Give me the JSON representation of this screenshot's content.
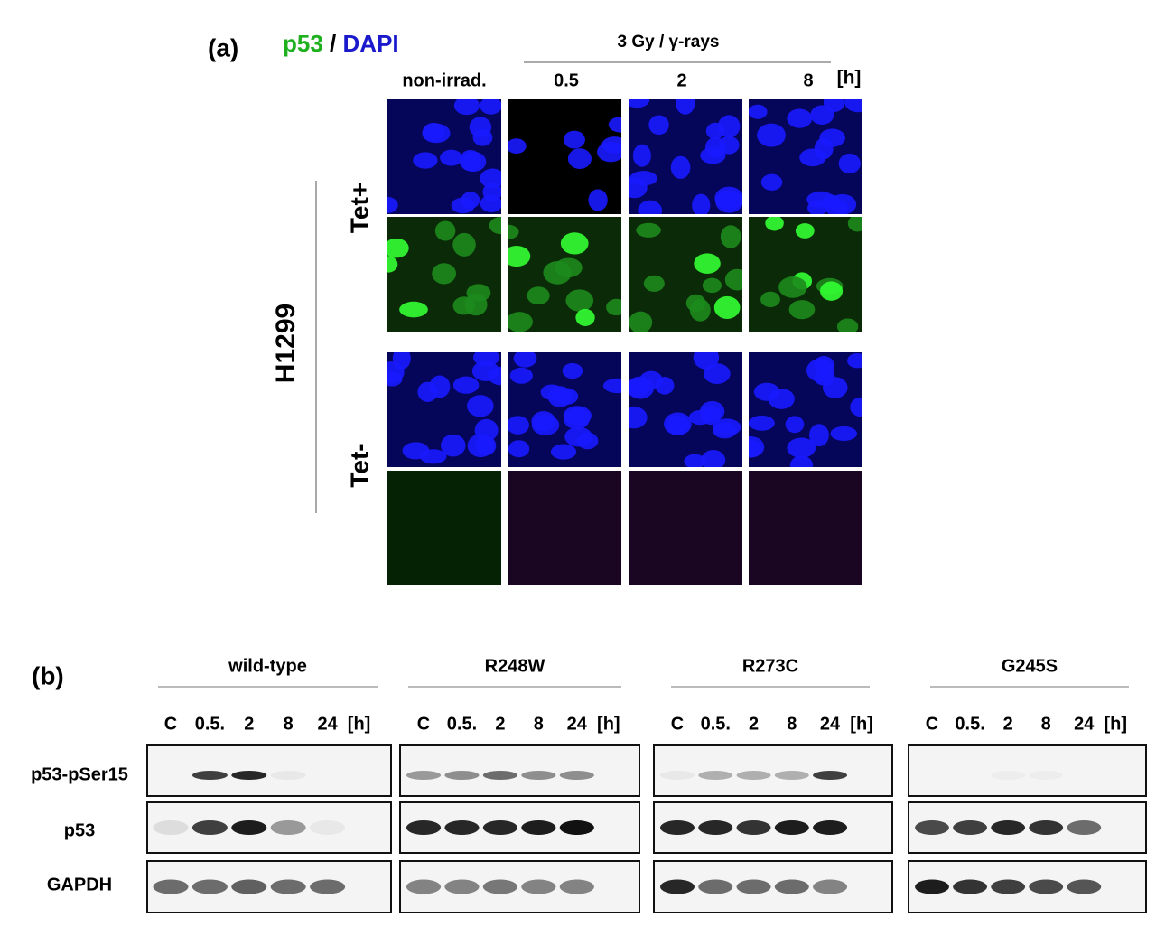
{
  "panel_a": {
    "label": "(a)",
    "stain_p53": "p53",
    "stain_separator": "/",
    "stain_dapi": "DAPI",
    "treatment": "3 Gy / γ-rays",
    "columns": [
      "non-irrad.",
      "0.5",
      "2",
      "8"
    ],
    "unit": "[h]",
    "cell_line": "H1299",
    "rows": [
      "Tet+",
      "Tet-"
    ]
  },
  "panel_b": {
    "label": "(b)",
    "groups": [
      {
        "name": "wild-type",
        "lanes": [
          "C",
          "0.5.",
          "2",
          "8",
          "24"
        ],
        "unit": "[h]"
      },
      {
        "name": "R248W",
        "lanes": [
          "C",
          "0.5.",
          "2",
          "8",
          "24"
        ],
        "unit": "[h]"
      },
      {
        "name": "R273C",
        "lanes": [
          "C",
          "0.5.",
          "2",
          "8",
          "24"
        ],
        "unit": "[h]"
      },
      {
        "name": "G245S",
        "lanes": [
          "C",
          "0.5.",
          "2",
          "8",
          "24"
        ],
        "unit": "[h]"
      }
    ],
    "rows": [
      "p53-pSer15",
      "p53",
      "GAPDH"
    ]
  }
}
